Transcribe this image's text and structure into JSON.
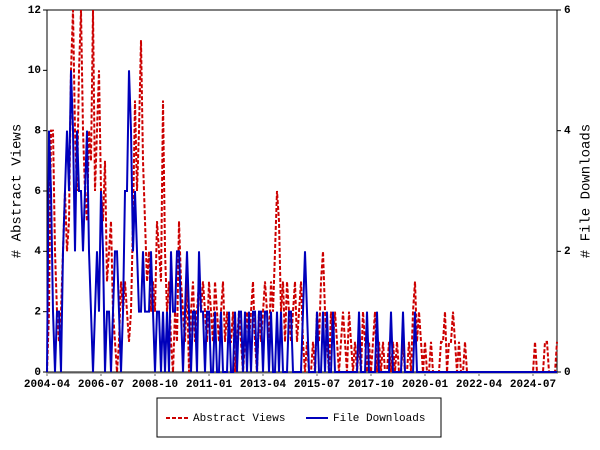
{
  "chart_data": {
    "type": "line",
    "y_label": "# Abstract Views",
    "y2_label": "# File Downloads",
    "categories": [
      "2004-04",
      null,
      null,
      null,
      null,
      null,
      null,
      null,
      null,
      null,
      null,
      null,
      null,
      null,
      null,
      null,
      null,
      null,
      null,
      null,
      null,
      null,
      null,
      null,
      null,
      null,
      null,
      "2006-07",
      null,
      null,
      null,
      null,
      null,
      null,
      null,
      null,
      null,
      null,
      null,
      null,
      null,
      null,
      null,
      null,
      null,
      null,
      null,
      null,
      null,
      null,
      null,
      null,
      null,
      null,
      "2008-10",
      null,
      null,
      null,
      null,
      null,
      null,
      null,
      null,
      null,
      null,
      null,
      null,
      null,
      null,
      null,
      null,
      null,
      null,
      null,
      null,
      null,
      null,
      null,
      null,
      null,
      null,
      "2011-01",
      null,
      null,
      null,
      null,
      null,
      null,
      null,
      null,
      null,
      null,
      null,
      null,
      null,
      null,
      null,
      null,
      null,
      null,
      null,
      null,
      null,
      null,
      null,
      null,
      null,
      null,
      "2013-04",
      null,
      null,
      null,
      null,
      null,
      null,
      null,
      null,
      null,
      null,
      null,
      null,
      null,
      null,
      null,
      null,
      null,
      null,
      null,
      null,
      null,
      null,
      null,
      null,
      null,
      null,
      "2015-07",
      null,
      null,
      null,
      null,
      null,
      null,
      null,
      null,
      null,
      null,
      null,
      null,
      null,
      null,
      null,
      null,
      null,
      null,
      null,
      null,
      null,
      null,
      null,
      null,
      null,
      null,
      "2017-10",
      null,
      null,
      null,
      null,
      null,
      null,
      null,
      null,
      null,
      null,
      null,
      null,
      null,
      null,
      null,
      null,
      null,
      null,
      null,
      null,
      null,
      null,
      null,
      null,
      null,
      null,
      "2020-01",
      null,
      null,
      null,
      null,
      null,
      null,
      null,
      null,
      null,
      null,
      null,
      null,
      null,
      null,
      null,
      null,
      null,
      null,
      null,
      null,
      null,
      null,
      null,
      null,
      null,
      null,
      "2022-04",
      null,
      null,
      null,
      null,
      null,
      null,
      null,
      null,
      null,
      null,
      null,
      null,
      null,
      null,
      null,
      null,
      null,
      null,
      null,
      null,
      null,
      null,
      null,
      null,
      null,
      null,
      "2024-07",
      null,
      null,
      null,
      null,
      null,
      null,
      null,
      null,
      null,
      null,
      null,
      null
    ],
    "series": [
      {
        "name": "Abstract Views",
        "color": "#cc0000",
        "dash": true,
        "values": [
          0,
          2,
          8,
          8,
          4,
          2,
          1,
          2,
          4,
          6,
          4,
          5,
          10,
          12,
          8,
          6,
          10,
          12,
          8,
          6,
          5,
          8,
          7,
          12,
          6,
          8,
          10,
          6,
          5,
          7,
          3,
          4,
          5,
          2,
          1,
          0,
          1,
          3,
          2,
          3,
          2,
          1,
          2,
          5,
          9,
          6,
          8,
          11,
          7,
          5,
          3,
          4,
          2,
          3,
          2,
          5,
          4,
          3,
          9,
          4,
          2,
          3,
          1,
          0,
          2,
          1,
          5,
          3,
          2,
          1,
          3,
          0,
          2,
          3,
          1,
          2,
          3,
          2,
          3,
          2,
          1,
          3,
          2,
          1,
          3,
          2,
          1,
          2,
          3,
          1,
          2,
          1,
          1,
          2,
          0,
          1,
          2,
          1,
          0,
          1,
          2,
          1,
          2,
          3,
          1,
          0,
          2,
          1,
          2,
          3,
          2,
          1,
          3,
          2,
          4,
          6,
          5,
          2,
          3,
          1,
          3,
          2,
          1,
          2,
          3,
          1,
          2,
          3,
          1,
          0,
          1,
          0,
          0,
          1,
          0,
          2,
          1,
          3,
          4,
          2,
          1,
          0,
          2,
          1,
          2,
          1,
          0,
          1,
          2,
          1,
          0,
          2,
          1,
          0,
          1,
          0,
          1,
          0,
          2,
          1,
          0,
          1,
          0,
          1,
          2,
          0,
          1,
          0,
          1,
          0,
          0,
          1,
          0,
          1,
          0,
          1,
          0,
          0,
          1,
          0,
          0,
          1,
          0,
          2,
          3,
          1,
          2,
          1,
          0,
          1,
          0,
          0,
          1,
          0,
          0,
          0,
          0,
          1,
          1,
          2,
          0,
          1,
          1,
          2,
          1,
          0,
          1,
          0,
          0,
          1,
          0,
          0,
          0,
          0,
          0,
          0,
          0,
          0,
          0,
          0,
          0,
          0,
          0,
          0,
          0,
          0,
          0,
          0,
          0,
          0,
          0,
          0,
          0,
          0,
          0,
          0,
          0,
          0,
          0,
          0,
          0,
          0,
          0,
          0,
          1,
          0,
          0,
          0,
          0,
          1,
          1,
          0,
          0,
          0,
          0,
          1
        ]
      },
      {
        "name": "File Downloads",
        "color": "#0000bb",
        "dash": false,
        "axis": "y2",
        "values": [
          0,
          4,
          3,
          1,
          0,
          1,
          1,
          0,
          2,
          3,
          4,
          3,
          5,
          4,
          2,
          4,
          3,
          3,
          2,
          3,
          4,
          2,
          1,
          0,
          1,
          2,
          1,
          3,
          2,
          0,
          1,
          1,
          0,
          1,
          2,
          2,
          1,
          0,
          1,
          3,
          3,
          5,
          4,
          2,
          3,
          2,
          1,
          1,
          2,
          1,
          1,
          1,
          2,
          1,
          0,
          1,
          1,
          0,
          1,
          0,
          1,
          0,
          2,
          1,
          1,
          2,
          2,
          1,
          0,
          1,
          2,
          1,
          0,
          1,
          1,
          0,
          2,
          1,
          1,
          0,
          1,
          1,
          0,
          0,
          1,
          0,
          0,
          1,
          0,
          0,
          0,
          1,
          0,
          0,
          1,
          0,
          1,
          1,
          0,
          1,
          0,
          1,
          0,
          1,
          1,
          0,
          1,
          1,
          0,
          1,
          1,
          0,
          1,
          0,
          0,
          1,
          0,
          1,
          0,
          0,
          0,
          1,
          1,
          0,
          0,
          0,
          0,
          0,
          1,
          2,
          1,
          0,
          0,
          0,
          0,
          1,
          0,
          0,
          1,
          0,
          1,
          0,
          0,
          1,
          0,
          0,
          0,
          0,
          0,
          0,
          0,
          0,
          0,
          0,
          0,
          0,
          1,
          0,
          0,
          0,
          1,
          0,
          0,
          0,
          0,
          1,
          0,
          0,
          0,
          0,
          0,
          0,
          1,
          0,
          0,
          0,
          0,
          0,
          1,
          0,
          0,
          0,
          0,
          0,
          1,
          0,
          0,
          0,
          0,
          0,
          0,
          0,
          0,
          0,
          0,
          0,
          0,
          0,
          0,
          0,
          0,
          0,
          0,
          0,
          0,
          0,
          0,
          0,
          0,
          0,
          0,
          0,
          0,
          0,
          0,
          0,
          0,
          0,
          0,
          0,
          0,
          0,
          0,
          0,
          0,
          0,
          0,
          0,
          0,
          0,
          0,
          0,
          0,
          0,
          0,
          0,
          0,
          0,
          0,
          0,
          0,
          0,
          0,
          0,
          0,
          0,
          0,
          0,
          0,
          0,
          0,
          0,
          0,
          0,
          0,
          0
        ]
      }
    ],
    "ylim": [
      0,
      12
    ],
    "yticks": [
      0,
      2,
      4,
      6,
      8,
      10,
      12
    ],
    "y2lim": [
      0,
      6
    ],
    "y2ticks": [
      0,
      2,
      4,
      6
    ],
    "legend": "bottom"
  }
}
